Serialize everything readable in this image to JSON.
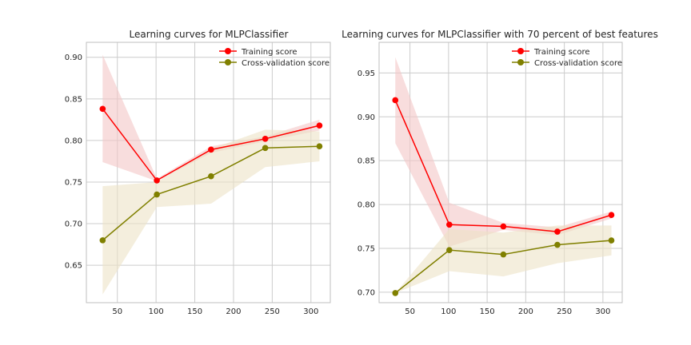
{
  "colors": {
    "training": "#ff0000",
    "cv": "#808000",
    "training_band": "#f4c6c6",
    "cv_band": "#ece3c6",
    "grid": "#cccccc",
    "frame": "#bfbfbf",
    "text": "#262626"
  },
  "chart_data": [
    {
      "type": "line",
      "title": "Learning curves for MLPClassifier",
      "xlabel": "",
      "ylabel": "",
      "xlim": [
        10,
        325
      ],
      "ylim": [
        0.605,
        0.918
      ],
      "xticks": [
        50,
        100,
        150,
        200,
        250,
        300
      ],
      "yticks": [
        0.65,
        0.7,
        0.75,
        0.8,
        0.85,
        0.9
      ],
      "ytick_labels": [
        "0.65",
        "0.70",
        "0.75",
        "0.80",
        "0.85",
        "0.90"
      ],
      "grid": true,
      "legend": "top-right",
      "x": [
        31,
        101,
        171,
        241,
        311
      ],
      "series": [
        {
          "name": "Training score",
          "values": [
            0.838,
            0.752,
            0.789,
            0.802,
            0.818
          ],
          "lower": [
            0.774,
            0.751,
            0.785,
            0.799,
            0.812
          ],
          "upper": [
            0.903,
            0.754,
            0.793,
            0.805,
            0.825
          ]
        },
        {
          "name": "Cross-validation score",
          "values": [
            0.68,
            0.735,
            0.757,
            0.791,
            0.793
          ],
          "lower": [
            0.615,
            0.72,
            0.724,
            0.768,
            0.775
          ],
          "upper": [
            0.745,
            0.75,
            0.79,
            0.813,
            0.811
          ]
        }
      ]
    },
    {
      "type": "line",
      "title": "Learning curves for MLPClassifier with 70 percent of best features",
      "xlabel": "",
      "ylabel": "",
      "xlim": [
        10,
        325
      ],
      "ylim": [
        0.688,
        0.985
      ],
      "xticks": [
        50,
        100,
        150,
        200,
        250,
        300
      ],
      "yticks": [
        0.7,
        0.75,
        0.8,
        0.85,
        0.9,
        0.95
      ],
      "ytick_labels": [
        "0.70",
        "0.75",
        "0.80",
        "0.85",
        "0.90",
        "0.95"
      ],
      "grid": true,
      "legend": "top-right",
      "x": [
        31,
        101,
        171,
        241,
        311
      ],
      "series": [
        {
          "name": "Training score",
          "values": [
            0.919,
            0.777,
            0.775,
            0.769,
            0.788
          ],
          "lower": [
            0.87,
            0.752,
            0.771,
            0.765,
            0.784
          ],
          "upper": [
            0.968,
            0.802,
            0.779,
            0.774,
            0.792
          ]
        },
        {
          "name": "Cross-validation score",
          "values": [
            0.699,
            0.748,
            0.743,
            0.754,
            0.759
          ],
          "lower": [
            0.699,
            0.724,
            0.718,
            0.733,
            0.742
          ],
          "upper": [
            0.699,
            0.772,
            0.768,
            0.776,
            0.776
          ]
        }
      ]
    }
  ]
}
